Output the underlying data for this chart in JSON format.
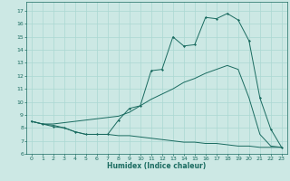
{
  "xlabel": "Humidex (Indice chaleur)",
  "background_color": "#cce8e4",
  "grid_color": "#aad8d2",
  "line_color": "#1a6b60",
  "xlim": [
    -0.5,
    23.5
  ],
  "ylim": [
    6,
    17.7
  ],
  "yticks": [
    6,
    7,
    8,
    9,
    10,
    11,
    12,
    13,
    14,
    15,
    16,
    17
  ],
  "xticks": [
    0,
    1,
    2,
    3,
    4,
    5,
    6,
    7,
    8,
    9,
    10,
    11,
    12,
    13,
    14,
    15,
    16,
    17,
    18,
    19,
    20,
    21,
    22,
    23
  ],
  "line1_x": [
    0,
    1,
    2,
    3,
    4,
    5,
    6,
    7,
    8,
    9,
    10,
    11,
    12,
    13,
    14,
    15,
    16,
    17,
    18,
    19,
    20,
    21,
    22,
    23
  ],
  "line1_y": [
    8.5,
    8.3,
    8.1,
    8.0,
    7.7,
    7.5,
    7.5,
    7.5,
    8.6,
    9.5,
    9.7,
    12.4,
    12.5,
    15.0,
    14.3,
    14.4,
    16.5,
    16.4,
    16.8,
    16.3,
    14.7,
    10.3,
    7.9,
    6.5
  ],
  "line2_x": [
    0,
    1,
    2,
    3,
    4,
    5,
    6,
    7,
    8,
    9,
    10,
    11,
    12,
    13,
    14,
    15,
    16,
    17,
    18,
    19,
    20,
    21,
    22,
    23
  ],
  "line2_y": [
    8.5,
    8.3,
    8.3,
    8.4,
    8.5,
    8.6,
    8.7,
    8.8,
    8.9,
    9.2,
    9.7,
    10.2,
    10.6,
    11.0,
    11.5,
    11.8,
    12.2,
    12.5,
    12.8,
    12.5,
    10.3,
    7.5,
    6.6,
    6.5
  ],
  "line3_x": [
    0,
    1,
    2,
    3,
    4,
    5,
    6,
    7,
    8,
    9,
    10,
    11,
    12,
    13,
    14,
    15,
    16,
    17,
    18,
    19,
    20,
    21,
    22,
    23
  ],
  "line3_y": [
    8.5,
    8.3,
    8.2,
    8.0,
    7.7,
    7.5,
    7.5,
    7.5,
    7.4,
    7.4,
    7.3,
    7.2,
    7.1,
    7.0,
    6.9,
    6.9,
    6.8,
    6.8,
    6.7,
    6.6,
    6.6,
    6.5,
    6.5,
    6.5
  ]
}
